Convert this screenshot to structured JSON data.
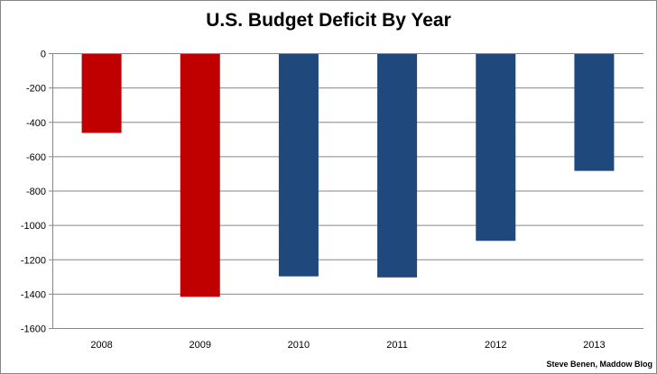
{
  "chart_data": {
    "type": "bar",
    "title": "U.S. Budget Deficit By Year",
    "categories": [
      "2008",
      "2009",
      "2010",
      "2011",
      "2012",
      "2013"
    ],
    "values": [
      -459,
      -1413,
      -1294,
      -1300,
      -1087,
      -680
    ],
    "colors": [
      "#c00000",
      "#c00000",
      "#1f497d",
      "#1f497d",
      "#1f497d",
      "#1f497d"
    ],
    "ylim": [
      -1600,
      0
    ],
    "yticks": [
      0,
      -200,
      -400,
      -600,
      -800,
      -1000,
      -1200,
      -1400,
      -1600
    ],
    "grid": true,
    "legend": "none"
  },
  "credit": "Steve Benen, Maddow Blog"
}
